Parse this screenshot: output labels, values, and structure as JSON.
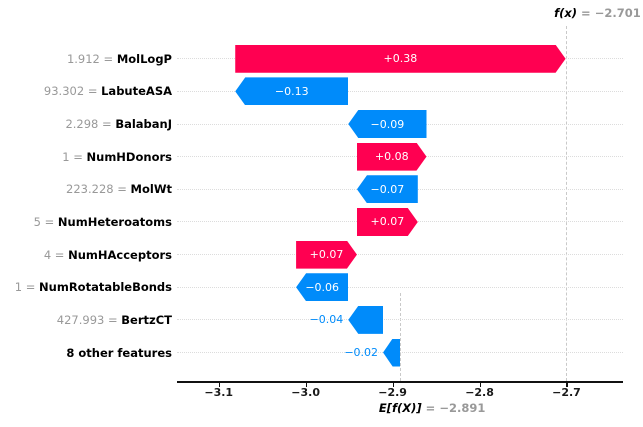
{
  "chart_data": {
    "type": "bar",
    "subtype": "shap-waterfall",
    "title": "",
    "xlabel": "",
    "ylabel": "",
    "grid": "dotted-row-lines",
    "legend": "none",
    "fx": {
      "prefix": "f(x)",
      "equals": " = −2.701",
      "value": -2.701
    },
    "base": {
      "prefix": "E[f(X)]",
      "equals": " = −2.891",
      "value": -2.891
    },
    "separator": " = ",
    "xlim": [
      -3.148,
      -2.635
    ],
    "tick_values": [
      -3.1,
      -3.0,
      -2.9,
      -2.8,
      -2.7
    ],
    "tick_labels": [
      "−3.1",
      "−3.0",
      "−2.9",
      "−2.8",
      "−2.7"
    ],
    "colors": {
      "positive": "#ff0051",
      "negative": "#008bfa",
      "bar_text": "#ffffff",
      "muted_text": "#999999",
      "feature_name_text": "#000000",
      "gridline": "#dcdcdc",
      "refline": "#c9c9c9",
      "axis": "#111111"
    },
    "features": [
      {
        "value": "1.912",
        "name": "MolLogP",
        "shap": 0.38,
        "label": "+0.38",
        "label_inside": true
      },
      {
        "value": "93.302",
        "name": "LabuteASA",
        "shap": -0.13,
        "label": "−0.13",
        "label_inside": true
      },
      {
        "value": "2.298",
        "name": "BalabanJ",
        "shap": -0.09,
        "label": "−0.09",
        "label_inside": true
      },
      {
        "value": "1",
        "name": "NumHDonors",
        "shap": 0.08,
        "label": "+0.08",
        "label_inside": true
      },
      {
        "value": "223.228",
        "name": "MolWt",
        "shap": -0.07,
        "label": "−0.07",
        "label_inside": true
      },
      {
        "value": "5",
        "name": "NumHeteroatoms",
        "shap": 0.07,
        "label": "+0.07",
        "label_inside": true
      },
      {
        "value": "4",
        "name": "NumHAcceptors",
        "shap": 0.07,
        "label": "+0.07",
        "label_inside": true
      },
      {
        "value": "1",
        "name": "NumRotatableBonds",
        "shap": -0.06,
        "label": "−0.06",
        "label_inside": true
      },
      {
        "value": "427.993",
        "name": "BertzCT",
        "shap": -0.04,
        "label": "−0.04",
        "label_inside": false
      },
      {
        "value": "",
        "name": "8 other features",
        "shap": -0.02,
        "label": "−0.02",
        "label_inside": false
      }
    ]
  }
}
